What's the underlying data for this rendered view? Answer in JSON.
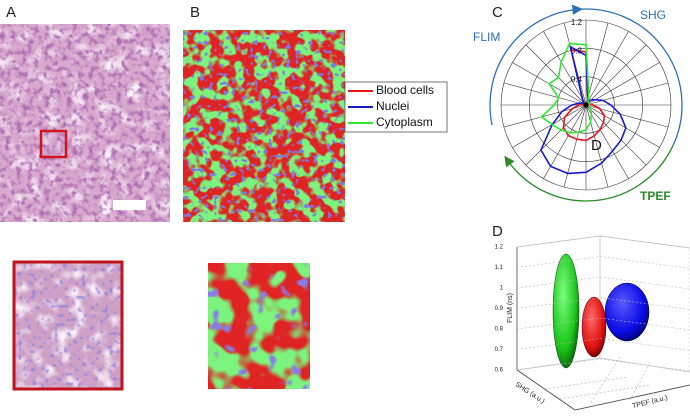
{
  "panels": {
    "a": "A",
    "b": "B",
    "c": "C",
    "d": "D"
  },
  "chart_data": [
    {
      "type": "polar",
      "labels": {
        "shg": "SHG",
        "flim": "FLIM",
        "tpef": "TPEF",
        "inner": "D"
      },
      "rlim": [
        0,
        1.2
      ],
      "rticks": [
        0.4,
        0.8,
        1.2
      ],
      "series": [
        {
          "name": "Blood cells",
          "color": "#e8141c",
          "values": [
            0.75,
            0.1,
            0.05,
            0.05,
            0.05,
            0.05,
            0.1,
            0.2,
            0.3,
            0.35,
            0.4,
            0.45,
            0.5,
            0.5,
            0.5,
            0.45,
            0.35,
            0.2,
            0.1,
            0.05,
            0.05,
            0.05,
            0.1,
            0.8
          ]
        },
        {
          "name": "Nuclei",
          "color": "#1a1ad0",
          "values": [
            0.7,
            0.1,
            0.05,
            0.1,
            0.15,
            0.25,
            0.35,
            0.5,
            0.65,
            0.7,
            0.75,
            0.85,
            0.95,
            1.0,
            1.0,
            0.9,
            0.55,
            0.35,
            0.2,
            0.1,
            0.05,
            0.05,
            0.1,
            0.85
          ]
        },
        {
          "name": "Cytoplasm",
          "color": "#2ee82e",
          "values": [
            0.85,
            0.15,
            0.05,
            0.05,
            0.05,
            0.05,
            0.05,
            0.05,
            0.05,
            0.1,
            0.15,
            0.25,
            0.35,
            0.4,
            0.45,
            0.5,
            0.55,
            0.65,
            0.45,
            0.4,
            0.6,
            0.55,
            0.7,
            0.9
          ]
        }
      ]
    },
    {
      "type": "ellipsoid3d",
      "zlabel": "FLIM (ns)",
      "xlabel": "SHG (a.u.)",
      "ylabel": "TPEF (a.u.)",
      "zlim": [
        0.6,
        1.2
      ],
      "zticks": [
        0.6,
        0.7,
        0.8,
        0.9,
        1,
        1.1,
        1.2
      ]
    }
  ]
}
